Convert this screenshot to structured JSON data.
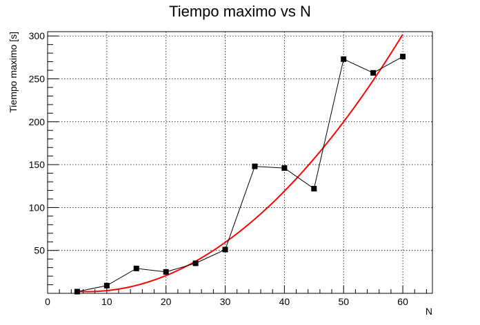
{
  "chart_data": {
    "type": "line",
    "title": "Tiempo maximo vs N",
    "xlabel": "N",
    "ylabel": "Tiempo maximo [s]",
    "xlim": [
      0,
      65
    ],
    "ylim": [
      0,
      305
    ],
    "grid": true,
    "x_ticks": [
      "0",
      "10",
      "20",
      "30",
      "40",
      "50",
      "60"
    ],
    "y_ticks": [
      "50",
      "100",
      "150",
      "200",
      "250",
      "300"
    ],
    "series": [
      {
        "color": "#000000",
        "marker": "square",
        "x": [
          5,
          10,
          15,
          20,
          25,
          30,
          35,
          40,
          45,
          50,
          55,
          60
        ],
        "y": [
          2,
          9,
          29,
          25,
          35,
          51,
          148,
          146,
          122,
          273,
          257,
          276
        ]
      }
    ],
    "fit": {
      "color": "#ff0000",
      "type": "polynomial-2",
      "coefficients": [
        6.7,
        -1.41,
        0.1055
      ],
      "x_range": [
        5,
        60
      ]
    }
  }
}
